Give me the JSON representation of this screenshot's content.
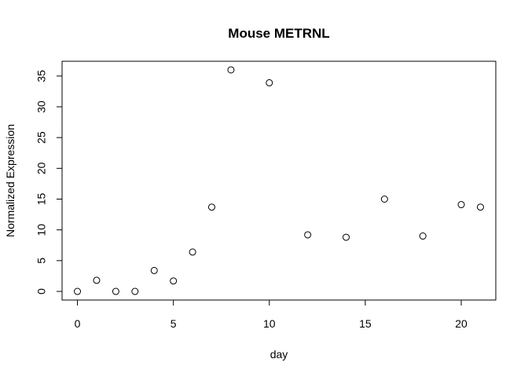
{
  "chart_data": {
    "type": "scatter",
    "title": "Mouse METRNL",
    "xlabel": "day",
    "ylabel": "Normalized Expression",
    "xlim": [
      -0.8,
      21.8
    ],
    "ylim": [
      -1.4,
      37.4
    ],
    "xticks": [
      0,
      5,
      10,
      15,
      20
    ],
    "yticks": [
      0,
      5,
      10,
      15,
      20,
      25,
      30,
      35
    ],
    "grid": false,
    "points": [
      {
        "x": 0,
        "y": 0.0
      },
      {
        "x": 1,
        "y": 1.8
      },
      {
        "x": 2,
        "y": 0.0
      },
      {
        "x": 3,
        "y": 0.0
      },
      {
        "x": 4,
        "y": 3.4
      },
      {
        "x": 5,
        "y": 1.7
      },
      {
        "x": 6,
        "y": 6.4
      },
      {
        "x": 7,
        "y": 13.7
      },
      {
        "x": 8,
        "y": 36.0
      },
      {
        "x": 10,
        "y": 33.9
      },
      {
        "x": 12,
        "y": 9.2
      },
      {
        "x": 14,
        "y": 8.8
      },
      {
        "x": 16,
        "y": 15.0
      },
      {
        "x": 18,
        "y": 9.0
      },
      {
        "x": 20,
        "y": 14.1
      },
      {
        "x": 21,
        "y": 13.7
      }
    ]
  }
}
